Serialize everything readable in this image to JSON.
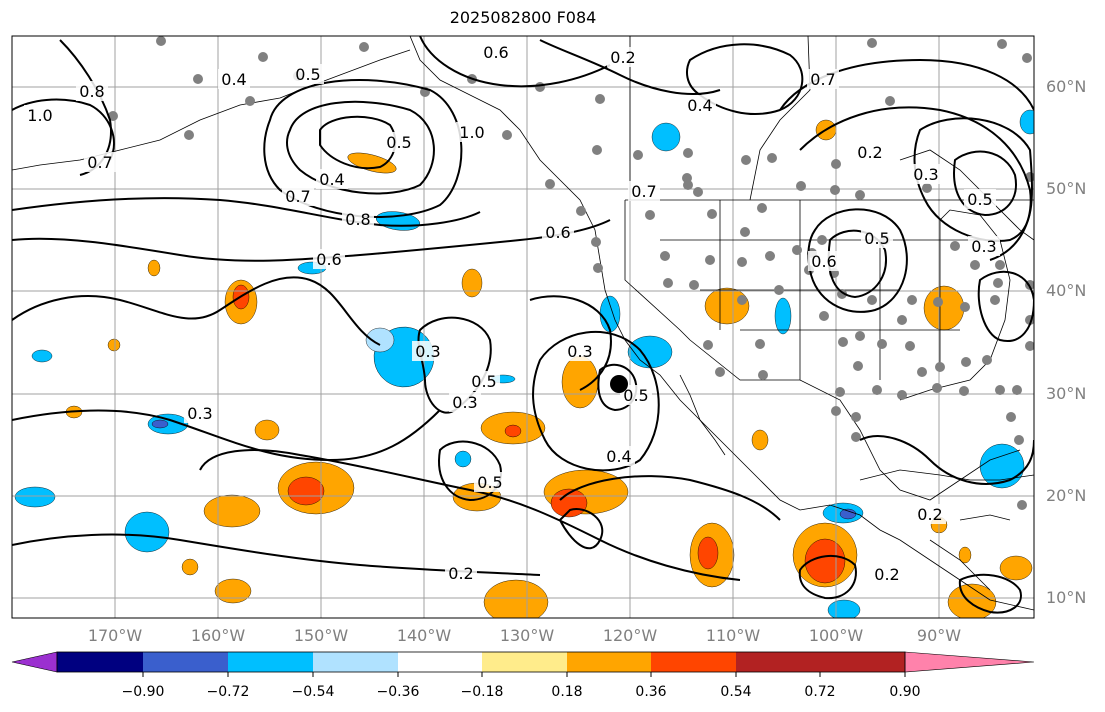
{
  "title": "2025082800 F084",
  "map": {
    "lon_range": [
      -180,
      -81
    ],
    "lat_range": [
      8,
      65
    ],
    "gridlines": true,
    "lon_ticks": [
      "170°W",
      "160°W",
      "150°W",
      "140°W",
      "130°W",
      "120°W",
      "110°W",
      "100°W",
      "90°W"
    ],
    "lat_ticks": [
      "60°N",
      "50°N",
      "40°N",
      "30°N",
      "20°N",
      "10°N"
    ],
    "contour_labels": [
      "0.6",
      "0.3",
      "0.2",
      "0.4",
      "0.8",
      "0.7",
      "1.0",
      "0.5",
      "0.4",
      "0.5",
      "0.7",
      "0.8",
      "0.6",
      "0.3",
      "0.3",
      "0.5",
      "0.3",
      "0.5",
      "0.5",
      "0.4",
      "0.2",
      "0.7",
      "0.4",
      "0.2",
      "0.3",
      "0.5",
      "0.5",
      "0.6",
      "0.3",
      "0.2",
      "0.2",
      "1.0",
      "0.6",
      "0.7"
    ],
    "marker": "storm-center-dot"
  },
  "colorbar": {
    "colors": [
      "#9b30d0",
      "#000080",
      "#3a5fcd",
      "#00bfff",
      "#b0e2ff",
      "#ffffff",
      "#ffec8b",
      "#ffa500",
      "#ff4500",
      "#b22222",
      "#ff82ab"
    ],
    "tick_labels": [
      "−0.90",
      "−0.72",
      "−0.54",
      "−0.36",
      "−0.18",
      "0.18",
      "0.36",
      "0.54",
      "0.72",
      "0.90"
    ]
  }
}
